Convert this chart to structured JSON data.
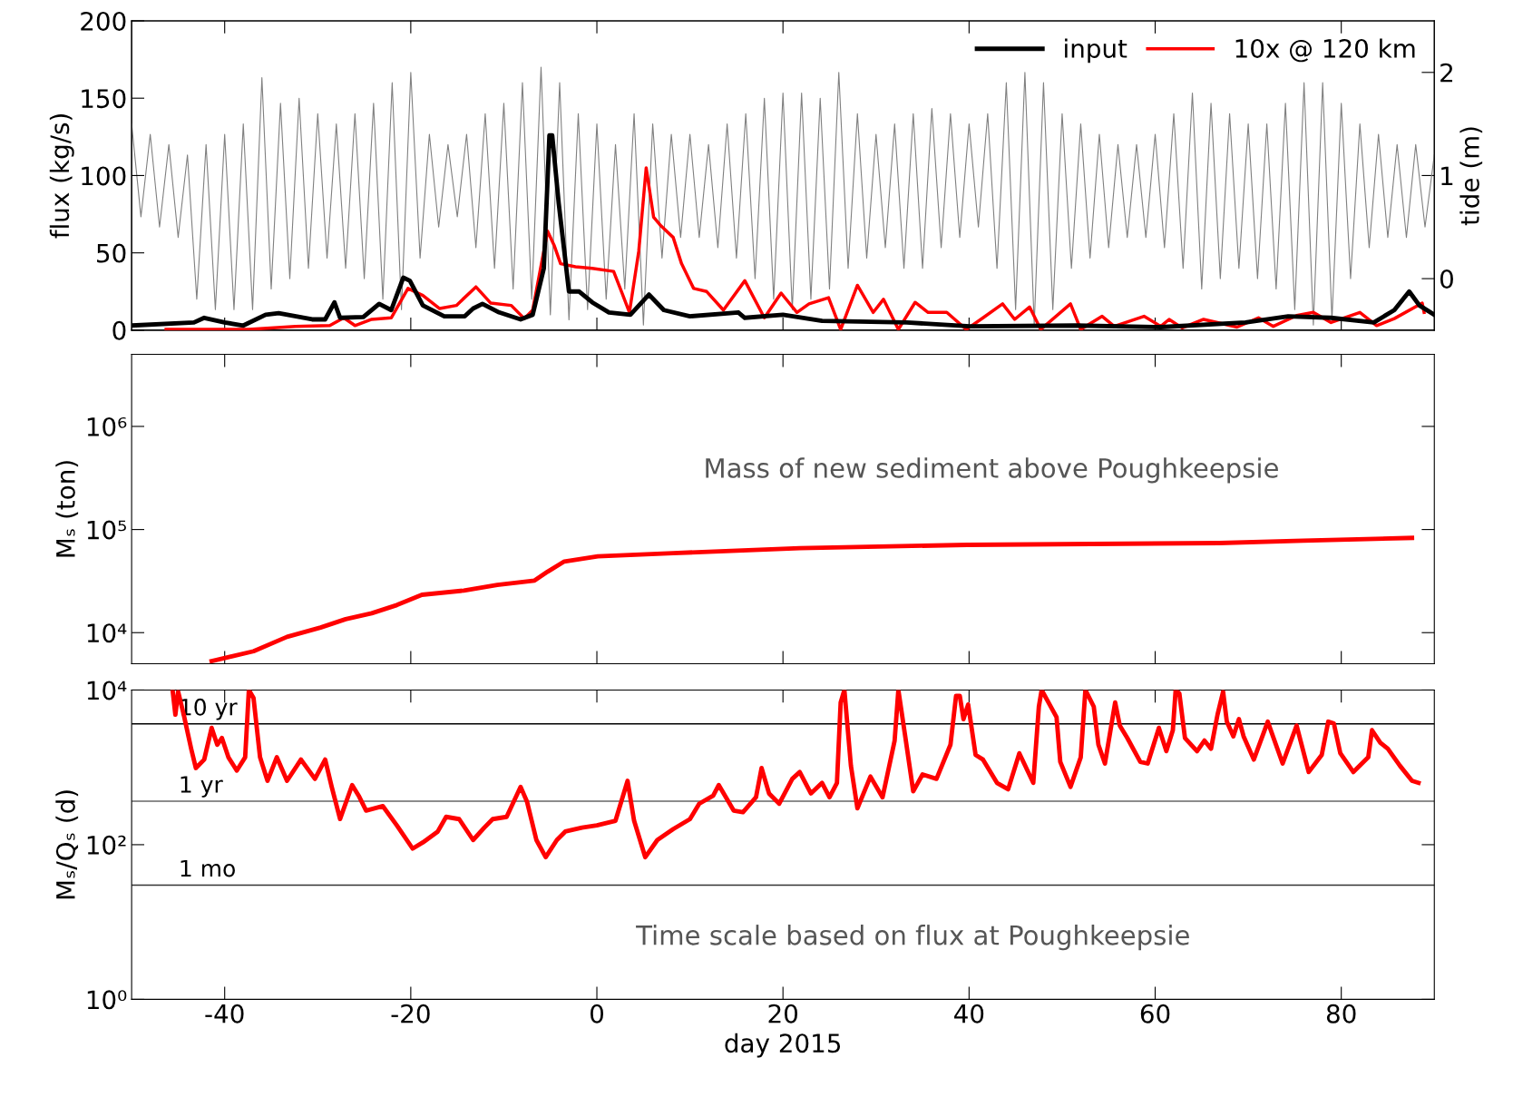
{
  "chart_data": [
    {
      "type": "line",
      "ylabel": "flux (kg/s)",
      "y2label": "tide (m)",
      "xlim": [
        -50,
        90
      ],
      "xticks": [
        -40,
        -20,
        0,
        20,
        40,
        60,
        80
      ],
      "ylim": [
        0,
        200
      ],
      "yticks": [
        0,
        50,
        100,
        150,
        200
      ],
      "y2lim": [
        -0.5,
        2.5
      ],
      "y2ticks": [
        0,
        1,
        2
      ],
      "tick_labels": "y",
      "legend": "top right",
      "series": [
        {
          "name": "input",
          "color": "#000000",
          "x": [
            -50,
            -43.3,
            -42.2,
            -40,
            -38,
            -35.6,
            -34.2,
            -30.6,
            -29.2,
            -28.2,
            -27.6,
            -25.1,
            -23.4,
            -22.1,
            -20.8,
            -20.1,
            -18.7,
            -16.4,
            -14.2,
            -13.3,
            -12.3,
            -10.5,
            -8.2,
            -6.9,
            -5.7,
            -5.1,
            -4.8,
            -4.1,
            -3.5,
            -3.0,
            -1.9,
            -0.5,
            1.3,
            3.6,
            5.6,
            7.2,
            10.0,
            15.2,
            15.9,
            20,
            24.2,
            33.3,
            40.1,
            51.5,
            60.6,
            69.7,
            74.3,
            78.9,
            83.5,
            85.7,
            87.3,
            88.4,
            90
          ],
          "values": [
            3,
            5,
            8,
            5,
            3,
            10,
            11,
            7,
            7,
            18,
            8,
            8.5,
            17,
            13,
            34,
            32,
            16,
            9,
            9,
            14,
            17,
            11.5,
            7,
            10,
            40,
            126,
            126,
            82,
            51,
            25,
            25,
            18,
            11.5,
            10,
            23,
            13,
            9,
            11.5,
            8,
            10,
            6,
            5,
            2.5,
            3,
            2,
            5,
            9,
            8,
            5,
            13,
            25,
            16,
            10
          ]
        },
        {
          "name": "10x @ 120 km",
          "color": "#ff0000",
          "x": [
            -46.3,
            -37.4,
            -32.4,
            -28.7,
            -27.2,
            -26,
            -24.2,
            -22.1,
            -20.3,
            -18.7,
            -16.9,
            -15.1,
            -13,
            -11.4,
            -9.2,
            -7.8,
            -6.9,
            -5.3,
            -4.6,
            -3.9,
            -2.3,
            -0.5,
            1.8,
            2.7,
            3.5,
            4.5,
            5.3,
            6.1,
            6.8,
            8.2,
            9.1,
            10.4,
            11.8,
            13.6,
            15.9,
            18,
            19.8,
            21.5,
            22.8,
            24.9,
            26.2,
            28,
            29.7,
            30.8,
            32.4,
            34.2,
            35.6,
            37.6,
            39.7,
            41.5,
            43.6,
            44.9,
            46.5,
            47.7,
            50.9,
            52,
            54.3,
            55.6,
            58.8,
            60.6,
            61.5,
            62.9,
            65.2,
            68.8,
            71.1,
            72.7,
            75.2,
            77,
            78.9,
            82,
            83.8,
            85.7,
            88.7,
            88.9
          ],
          "values": [
            0.5,
            0.5,
            2.5,
            3,
            8,
            3,
            7,
            8,
            27,
            22.5,
            14,
            16,
            28,
            17.5,
            16,
            7.5,
            13,
            64,
            55,
            43,
            41,
            40,
            38,
            24,
            11.5,
            51,
            105,
            73,
            68,
            60,
            43,
            27,
            25,
            13,
            32,
            8,
            24,
            11.5,
            17,
            21,
            0.5,
            29,
            11.5,
            20,
            0.5,
            18,
            11.5,
            11.5,
            0.5,
            8,
            17,
            7,
            15,
            0.5,
            17,
            0.5,
            9,
            2.5,
            9,
            2.5,
            7,
            1.5,
            7,
            2,
            8,
            2.5,
            9.5,
            11.5,
            5,
            11.5,
            3,
            7.5,
            17.5,
            11.5
          ]
        },
        {
          "color": "#808080",
          "axis": "y2",
          "x": [
            -50,
            -49,
            -48,
            -47,
            -46,
            -45,
            -44,
            -43,
            -42,
            -41,
            -40,
            -39,
            -38,
            -37,
            -36,
            -35,
            -34,
            -33,
            -32,
            -31,
            -30,
            -29,
            -28,
            -27,
            -26,
            -25,
            -24,
            -23,
            -22,
            -21,
            -20,
            -19,
            -18,
            -17,
            -16,
            -15,
            -14,
            -13,
            -12,
            -11,
            -10,
            -9,
            -8,
            -7,
            -6,
            -5,
            -4,
            -3,
            -2,
            -1,
            0,
            1,
            2,
            3,
            4,
            5,
            6,
            7,
            8,
            9,
            10,
            11,
            12,
            13,
            14,
            15,
            16,
            17,
            18,
            19,
            20,
            21,
            22,
            23,
            24,
            25,
            26,
            27,
            28,
            29,
            30,
            31,
            32,
            33,
            34,
            35,
            36,
            37,
            38,
            39,
            40,
            41,
            42,
            43,
            44,
            45,
            46,
            47,
            48,
            49,
            50,
            51,
            52,
            53,
            54,
            55,
            56,
            57,
            58,
            59,
            60,
            61,
            62,
            63,
            64,
            65,
            66,
            67,
            68,
            69,
            70,
            71,
            72,
            73,
            74,
            75,
            76,
            77,
            78,
            79,
            80,
            81,
            82,
            83,
            84,
            85,
            86,
            87,
            88,
            89,
            90
          ],
          "values": [
            1.5,
            0.6,
            1.4,
            0.5,
            1.3,
            0.4,
            1.2,
            -0.2,
            1.3,
            -0.3,
            1.4,
            -0.3,
            1.5,
            -0.3,
            1.95,
            -0.1,
            1.7,
            0.0,
            1.75,
            0.1,
            1.6,
            0.2,
            1.5,
            0.1,
            1.6,
            0.0,
            1.7,
            -0.2,
            1.9,
            -0.3,
            2.0,
            0.2,
            1.4,
            0.5,
            1.3,
            0.6,
            1.4,
            0.3,
            1.6,
            0.1,
            1.7,
            -0.1,
            1.9,
            -0.2,
            2.05,
            -0.35,
            1.9,
            -0.4,
            1.6,
            -0.3,
            1.5,
            -0.2,
            1.3,
            -0.1,
            1.6,
            -0.45,
            1.5,
            0.2,
            1.4,
            0.4,
            1.4,
            0.4,
            1.3,
            0.3,
            1.5,
            0.2,
            1.6,
            0.0,
            1.75,
            -0.2,
            1.8,
            -0.3,
            1.8,
            -0.2,
            1.75,
            -0.1,
            2.0,
            0.1,
            1.6,
            0.2,
            1.4,
            0.3,
            1.5,
            0.1,
            1.6,
            0.1,
            1.65,
            0.3,
            1.6,
            0.4,
            1.5,
            0.5,
            1.6,
            0.1,
            1.9,
            -0.3,
            2.0,
            -0.45,
            1.9,
            -0.3,
            1.6,
            0.1,
            1.5,
            0.2,
            1.4,
            0.3,
            1.3,
            0.4,
            1.3,
            0.4,
            1.4,
            0.3,
            1.6,
            0.1,
            1.8,
            -0.1,
            1.7,
            0.0,
            1.6,
            0.1,
            1.5,
            0.0,
            1.5,
            -0.1,
            1.7,
            -0.3,
            1.9,
            -0.45,
            1.9,
            -0.4,
            1.7,
            0.0,
            1.5,
            0.3,
            1.4,
            0.4,
            1.3,
            0.4,
            1.3,
            0.5,
            1.2
          ]
        }
      ]
    },
    {
      "type": "line",
      "ylabel": "Mₛ (ton)",
      "log": true,
      "xlim": [
        -50,
        90
      ],
      "xticks": [
        -40,
        -20,
        0,
        20,
        40,
        60,
        80
      ],
      "ylim": [
        5000,
        5000000
      ],
      "yticks": [
        {
          "value": 10000,
          "label": "10⁴"
        },
        {
          "value": 100000,
          "label": "10⁵"
        },
        {
          "value": 1000000,
          "label": "10⁶"
        }
      ],
      "tick_labels": "y",
      "annotations": [
        "Mass of new sediment above Poughkeepsie"
      ],
      "series": [
        {
          "color": "#ff0000",
          "x": [
            -41.4,
            -36.9,
            -33.3,
            -29.7,
            -27,
            -24.2,
            -21.5,
            -18.8,
            -14.3,
            -10.7,
            -6.7,
            -5.3,
            -3.5,
            0.1,
            8.2,
            21.8,
            39.8,
            66.9,
            75.9,
            87.6
          ],
          "values": [
            5300,
            6600,
            9100,
            11200,
            13500,
            15400,
            18500,
            23300,
            25600,
            29000,
            32000,
            39000,
            49000,
            55000,
            59000,
            66000,
            71000,
            74000,
            78000,
            83000
          ]
        }
      ]
    },
    {
      "type": "line",
      "ylabel": "Mₛ/Qₛ (d)",
      "xlabel": "day 2015",
      "log": true,
      "xlim": [
        -50,
        90
      ],
      "xticks": [
        -40,
        -20,
        0,
        20,
        40,
        60,
        80
      ],
      "ylim": [
        1,
        10000
      ],
      "yticks": [
        {
          "value": 1,
          "label": "10⁰"
        },
        {
          "value": 100,
          "label": "10²"
        },
        {
          "value": 10000,
          "label": "10⁴"
        }
      ],
      "annotations": [
        "Time scale based on flux at Poughkeepsie"
      ],
      "ref_lines": [
        {
          "axis": "y",
          "value": 3650,
          "label": "10 yr",
          "color": "#000000"
        },
        {
          "axis": "y",
          "value": 365,
          "label": "1 yr",
          "color": "#666666"
        },
        {
          "axis": "y",
          "value": 30,
          "label": "1 mo",
          "color": "#333333"
        }
      ],
      "series": [
        {
          "color": "#ff0000",
          "x": [
            -45.6,
            -45.3,
            -45.0,
            -44.4,
            -43.6,
            -43.1,
            -42.2,
            -41.4,
            -40.8,
            -40.3,
            -39.6,
            -38.7,
            -37.8,
            -37.4,
            -36.9,
            -36.2,
            -35.4,
            -34.4,
            -33.3,
            -31.8,
            -30.3,
            -29.2,
            -28.5,
            -27.6,
            -26.3,
            -25.6,
            -24.8,
            -23.0,
            -21.5,
            -19.8,
            -18.7,
            -17.1,
            -16.2,
            -14.8,
            -13.3,
            -12.1,
            -11.2,
            -9.7,
            -8.2,
            -7.5,
            -6.5,
            -5.5,
            -4.3,
            -3.4,
            -1.6,
            0.0,
            2.0,
            3.3,
            4.0,
            5.2,
            6.5,
            8.2,
            10.0,
            11.0,
            12.5,
            13.1,
            14.7,
            15.7,
            17.1,
            17.7,
            18.5,
            19.6,
            21.0,
            21.8,
            23.0,
            24.2,
            25.0,
            25.8,
            26.2,
            26.6,
            27.3,
            28.0,
            29.4,
            30.7,
            32.0,
            32.4,
            33.1,
            34.0,
            35.0,
            36.5,
            38.0,
            38.6,
            39.0,
            39.4,
            39.9,
            40.7,
            41.5,
            43.0,
            44.2,
            45.4,
            46.9,
            47.5,
            47.8,
            49.4,
            49.8,
            50.9,
            52.0,
            52.5,
            53.4,
            53.9,
            54.6,
            55.7,
            56.2,
            57.0,
            58.4,
            59.2,
            60.4,
            61.2,
            61.9,
            62.2,
            62.6,
            63.2,
            64.5,
            65.3,
            66.0,
            66.7,
            67.3,
            67.7,
            68.4,
            69.0,
            69.5,
            70.6,
            72.1,
            73.7,
            75.2,
            76.5,
            77.9,
            78.6,
            79.2,
            79.9,
            81.3,
            82.9,
            83.3,
            84.2,
            85.0,
            86.3,
            87.6,
            88.3
          ],
          "values": [
            10000,
            4800,
            9500,
            4800,
            1740,
            980,
            1260,
            3240,
            1960,
            2400,
            1350,
            910,
            1350,
            10000,
            7900,
            1350,
            670,
            1350,
            670,
            1260,
            710,
            1260,
            560,
            215,
            590,
            430,
            276,
            315,
            178,
            89,
            107,
            148,
            229,
            214,
            115,
            166,
            214,
            229,
            560,
            357,
            115,
            69,
            115,
            148,
            166,
            178,
            204,
            670,
            204,
            69,
            115,
            159,
            214,
            339,
            430,
            590,
            276,
            263,
            410,
            980,
            460,
            339,
            710,
            870,
            460,
            630,
            410,
            630,
            6900,
            10000,
            1050,
            295,
            760,
            410,
            2220,
            10000,
            2700,
            490,
            810,
            710,
            1960,
            8400,
            8400,
            4200,
            6500,
            1450,
            1260,
            630,
            520,
            1520,
            630,
            6100,
            10000,
            4450,
            1180,
            560,
            1350,
            10000,
            6100,
            1960,
            1120,
            6900,
            3470,
            2400,
            1180,
            1120,
            3240,
            1620,
            3020,
            10000,
            9000,
            2400,
            1620,
            2220,
            1740,
            4800,
            9500,
            3900,
            2520,
            4200,
            2520,
            1260,
            3900,
            1120,
            3470,
            870,
            1450,
            3900,
            3700,
            1520,
            870,
            1350,
            3020,
            2080,
            1740,
            1050,
            670,
            630
          ]
        }
      ]
    }
  ]
}
